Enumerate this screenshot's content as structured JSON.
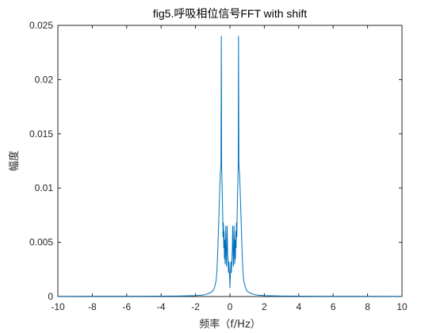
{
  "chart_data": {
    "type": "line",
    "title": "fig5.呼吸相位信号FFT with shift",
    "xlabel": "频率（f/Hz）",
    "ylabel": "幅度",
    "xlim": [
      -10,
      10
    ],
    "ylim": [
      0,
      0.025
    ],
    "xticks": [
      "-10",
      "-8",
      "-6",
      "-4",
      "-2",
      "0",
      "2",
      "4",
      "6",
      "8",
      "10"
    ],
    "yticks": [
      "0",
      "0.005",
      "0.01",
      "0.015",
      "0.02",
      "0.025"
    ],
    "grid": false,
    "legend": "none",
    "series": [
      {
        "color": "#0072bd",
        "x": [
          -10,
          -5,
          -3,
          -2,
          -1.5,
          -1.2,
          -1.0,
          -0.9,
          -0.8,
          -0.75,
          -0.7,
          -0.65,
          -0.6,
          -0.58,
          -0.55,
          -0.52,
          -0.5,
          -0.48,
          -0.46,
          -0.44,
          -0.42,
          -0.4,
          -0.38,
          -0.36,
          -0.34,
          -0.32,
          -0.3,
          -0.28,
          -0.26,
          -0.24,
          -0.22,
          -0.2,
          -0.18,
          -0.16,
          -0.14,
          -0.12,
          -0.1,
          -0.08,
          -0.06,
          -0.04,
          -0.02,
          0,
          0.02,
          0.04,
          0.06,
          0.08,
          0.1,
          0.12,
          0.14,
          0.16,
          0.18,
          0.2,
          0.22,
          0.24,
          0.26,
          0.28,
          0.3,
          0.32,
          0.34,
          0.36,
          0.38,
          0.4,
          0.42,
          0.44,
          0.46,
          0.48,
          0.5,
          0.52,
          0.55,
          0.58,
          0.6,
          0.65,
          0.7,
          0.75,
          0.8,
          0.9,
          1.0,
          1.2,
          1.5,
          2,
          3,
          5,
          10
        ],
        "y": [
          2e-05,
          3e-05,
          5e-05,
          8e-05,
          0.00015,
          0.0003,
          0.0005,
          0.0008,
          0.0015,
          0.0025,
          0.0045,
          0.007,
          0.0095,
          0.0105,
          0.0115,
          0.0122,
          0.024,
          0.012,
          0.0105,
          0.0092,
          0.0075,
          0.0055,
          0.0068,
          0.0045,
          0.006,
          0.0035,
          0.0052,
          0.003,
          0.0048,
          0.0065,
          0.0035,
          0.0028,
          0.0045,
          0.0065,
          0.0045,
          0.0035,
          0.0028,
          0.0022,
          0.0032,
          0.0025,
          0.0018,
          0.0008,
          0.0018,
          0.0025,
          0.0032,
          0.0022,
          0.0028,
          0.0035,
          0.0045,
          0.0065,
          0.0045,
          0.0028,
          0.0035,
          0.0065,
          0.0048,
          0.003,
          0.0052,
          0.0035,
          0.006,
          0.0045,
          0.0068,
          0.0055,
          0.0075,
          0.0092,
          0.0105,
          0.012,
          0.024,
          0.0122,
          0.0115,
          0.0105,
          0.0095,
          0.007,
          0.0045,
          0.0025,
          0.0015,
          0.0008,
          0.0005,
          0.0003,
          0.00015,
          8e-05,
          5e-05,
          3e-05,
          2e-05
        ]
      }
    ]
  }
}
